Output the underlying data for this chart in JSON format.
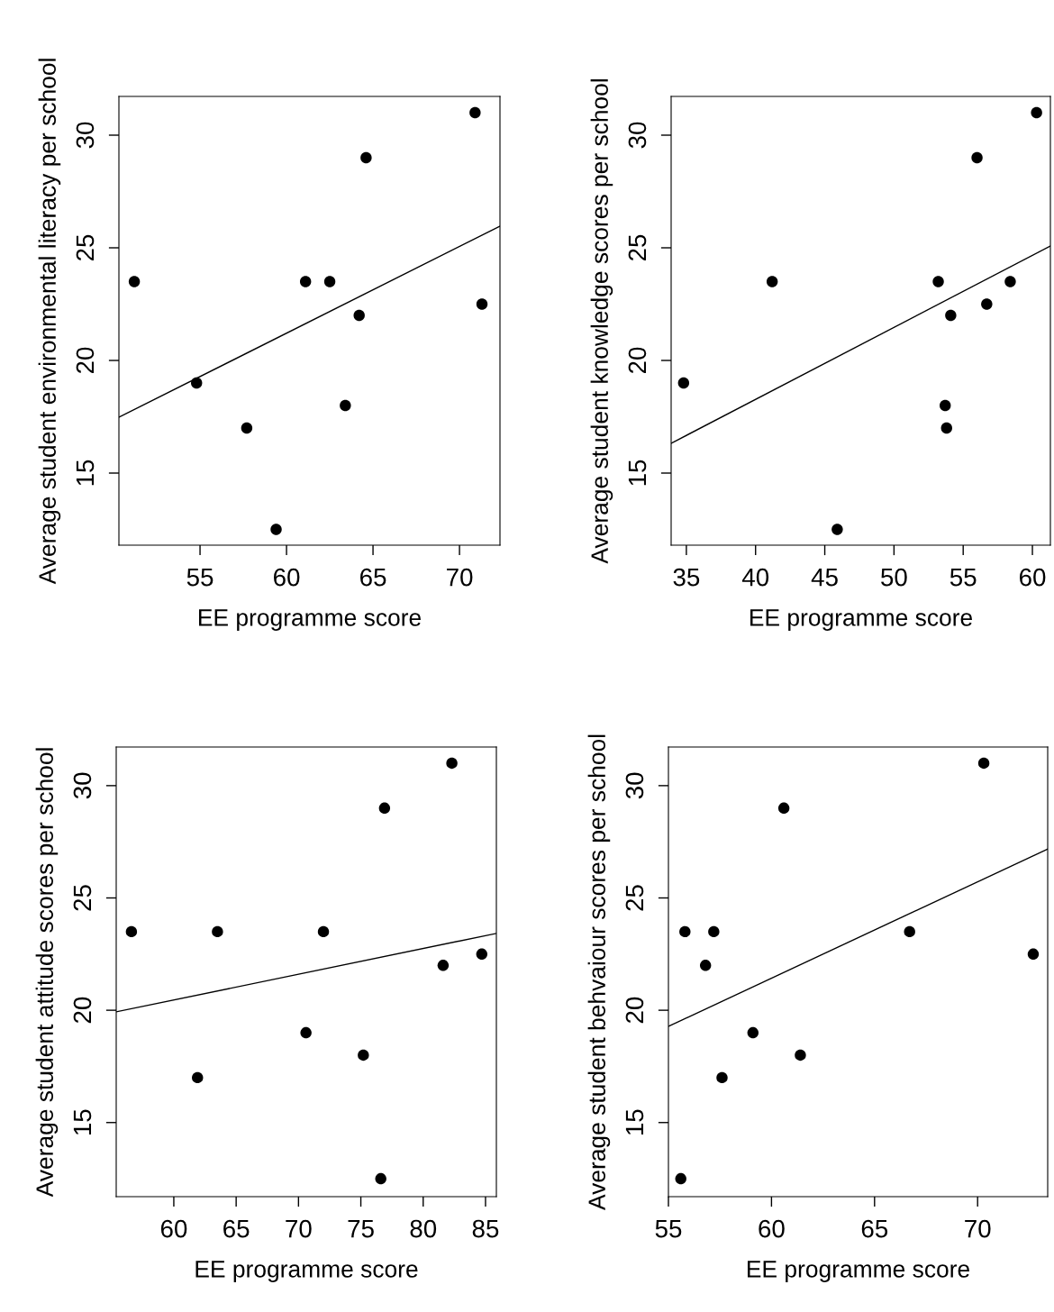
{
  "chart_data": [
    {
      "type": "scatter",
      "xlabel": "EE programme score",
      "ylabel": "Average student environmental literacy per school",
      "xlim": [
        50.31,
        72.34
      ],
      "ylim": [
        11.8,
        31.72
      ],
      "xticks": [
        55,
        60,
        65,
        70
      ],
      "yticks": [
        15,
        20,
        25,
        30
      ],
      "series": [
        {
          "color": "#000000",
          "marker": "circle",
          "x": [
            51.2,
            54.8,
            57.7,
            59.4,
            61.1,
            62.5,
            63.4,
            64.2,
            64.6,
            70.9,
            71.3
          ],
          "values": [
            23.5,
            19,
            17,
            12.5,
            23.5,
            23.5,
            18,
            22,
            29,
            31,
            22.5
          ]
        },
        {
          "type": "line",
          "color": "#000000",
          "x": [
            50.31,
            72.34
          ],
          "values": [
            17.48,
            25.96
          ]
        }
      ]
    },
    {
      "type": "scatter",
      "xlabel": "EE programme score",
      "ylabel": "Average student knowledge scores per school",
      "xlim": [
        33.9,
        61.3
      ],
      "ylim": [
        11.8,
        31.72
      ],
      "xticks": [
        35,
        40,
        45,
        50,
        55,
        60
      ],
      "yticks": [
        15,
        20,
        25,
        30
      ],
      "series": [
        {
          "color": "#000000",
          "marker": "circle",
          "x": [
            34.8,
            41.2,
            45.9,
            53.2,
            53.7,
            53.8,
            54.1,
            56.0,
            56.7,
            58.4,
            60.3
          ],
          "values": [
            19,
            23.5,
            12.5,
            23.5,
            18,
            17,
            22,
            29,
            22.5,
            23.5,
            31
          ]
        },
        {
          "type": "line",
          "color": "#000000",
          "x": [
            33.9,
            61.3
          ],
          "values": [
            16.32,
            25.08
          ]
        }
      ]
    },
    {
      "type": "scatter",
      "xlabel": "EE programme score",
      "ylabel": "Average student attitude scores per school",
      "xlim": [
        55.38,
        85.87
      ],
      "ylim": [
        11.7,
        31.72
      ],
      "xticks": [
        60,
        65,
        70,
        75,
        80,
        85
      ],
      "yticks": [
        15,
        20,
        25,
        30
      ],
      "series": [
        {
          "color": "#000000",
          "marker": "circle",
          "x": [
            56.6,
            61.9,
            63.5,
            70.6,
            72.0,
            75.2,
            76.6,
            76.9,
            81.6,
            82.3,
            84.7
          ],
          "values": [
            23.5,
            17,
            23.5,
            19,
            23.5,
            18,
            12.5,
            29,
            22,
            31,
            22.5
          ]
        },
        {
          "type": "line",
          "color": "#000000",
          "x": [
            55.38,
            85.87
          ],
          "values": [
            19.93,
            23.42
          ]
        }
      ]
    },
    {
      "type": "scatter",
      "xlabel": "EE programme score",
      "ylabel": "Average student behvaiour scores per school",
      "xlim": [
        55.0,
        73.4
      ],
      "ylim": [
        11.7,
        31.72
      ],
      "xticks": [
        55,
        60,
        65,
        70
      ],
      "yticks": [
        15,
        20,
        25,
        30
      ],
      "series": [
        {
          "color": "#000000",
          "marker": "circle",
          "x": [
            55.6,
            55.8,
            56.8,
            57.2,
            57.6,
            59.1,
            60.6,
            61.4,
            66.7,
            70.3,
            72.7
          ],
          "values": [
            12.5,
            23.5,
            22,
            23.5,
            17,
            19,
            29,
            18,
            23.5,
            31,
            22.5
          ]
        },
        {
          "type": "line",
          "color": "#000000",
          "x": [
            55.0,
            73.4
          ],
          "values": [
            19.28,
            27.18
          ]
        }
      ]
    }
  ]
}
